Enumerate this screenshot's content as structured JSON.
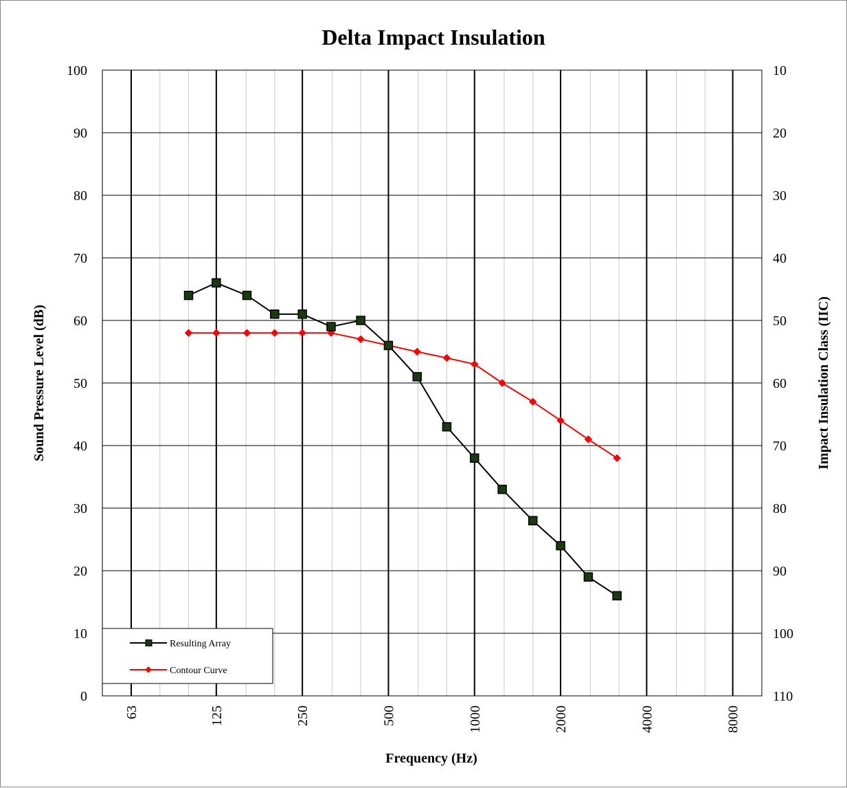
{
  "chart_data": {
    "type": "line",
    "title": "Delta Impact Insulation",
    "xlabel": "Frequency (Hz)",
    "ylabel": "Sound Pressure Level (dB)",
    "y2label": "Impact Insulation Class (IIC)",
    "ylim": [
      0,
      100
    ],
    "y2lim": [
      110,
      10
    ],
    "x_scale": "log2 (third-octave bands)",
    "x_ticks": [
      63,
      125,
      250,
      500,
      1000,
      2000,
      4000,
      8000
    ],
    "y_ticks": [
      0,
      10,
      20,
      30,
      40,
      50,
      60,
      70,
      80,
      90,
      100
    ],
    "y2_ticks": [
      110,
      100,
      90,
      80,
      70,
      60,
      50,
      40,
      30,
      20,
      10
    ],
    "grid": true,
    "legend_position": "bottom-left",
    "x": [
      100,
      125,
      160,
      200,
      250,
      315,
      400,
      500,
      630,
      800,
      1000,
      1250,
      1600,
      2000,
      2500,
      3150
    ],
    "series": [
      {
        "name": "Resulting Array",
        "color": "#000000",
        "marker": "square",
        "marker_color": "#1a3a10",
        "values": [
          64,
          66,
          64,
          61,
          61,
          59,
          60,
          56,
          51,
          43,
          38,
          33,
          28,
          24,
          19,
          16
        ]
      },
      {
        "name": "Contour Curve",
        "color": "#ff0000",
        "marker": "diamond",
        "marker_color": "#ff0000",
        "values": [
          58,
          58,
          58,
          58,
          58,
          58,
          57,
          56,
          55,
          54,
          53,
          50,
          47,
          44,
          41,
          38
        ]
      }
    ]
  }
}
